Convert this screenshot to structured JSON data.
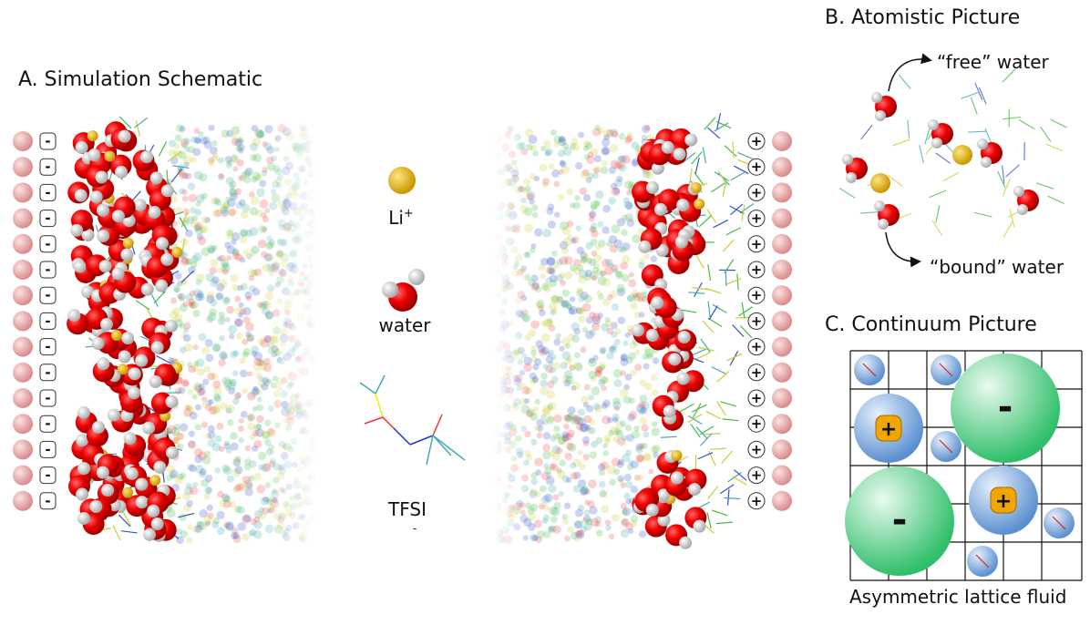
{
  "panel_a": {
    "title": "A. Simulation Schematic",
    "left_electrode_sign": "-",
    "right_electrode_sign": "+",
    "legend": {
      "li": {
        "label": "Li",
        "charge": "+"
      },
      "water": {
        "label": "water"
      },
      "tfsi": {
        "label": "TFSI",
        "charge": "-"
      }
    }
  },
  "panel_b": {
    "title": "B. Atomistic Picture",
    "free_label": "“free”  water",
    "bound_label": "“bound” water"
  },
  "panel_c": {
    "title": "C. Continuum Picture",
    "anion_sign": "-",
    "cation_sign": "+",
    "caption": "Asymmetric lattice fluid"
  }
}
